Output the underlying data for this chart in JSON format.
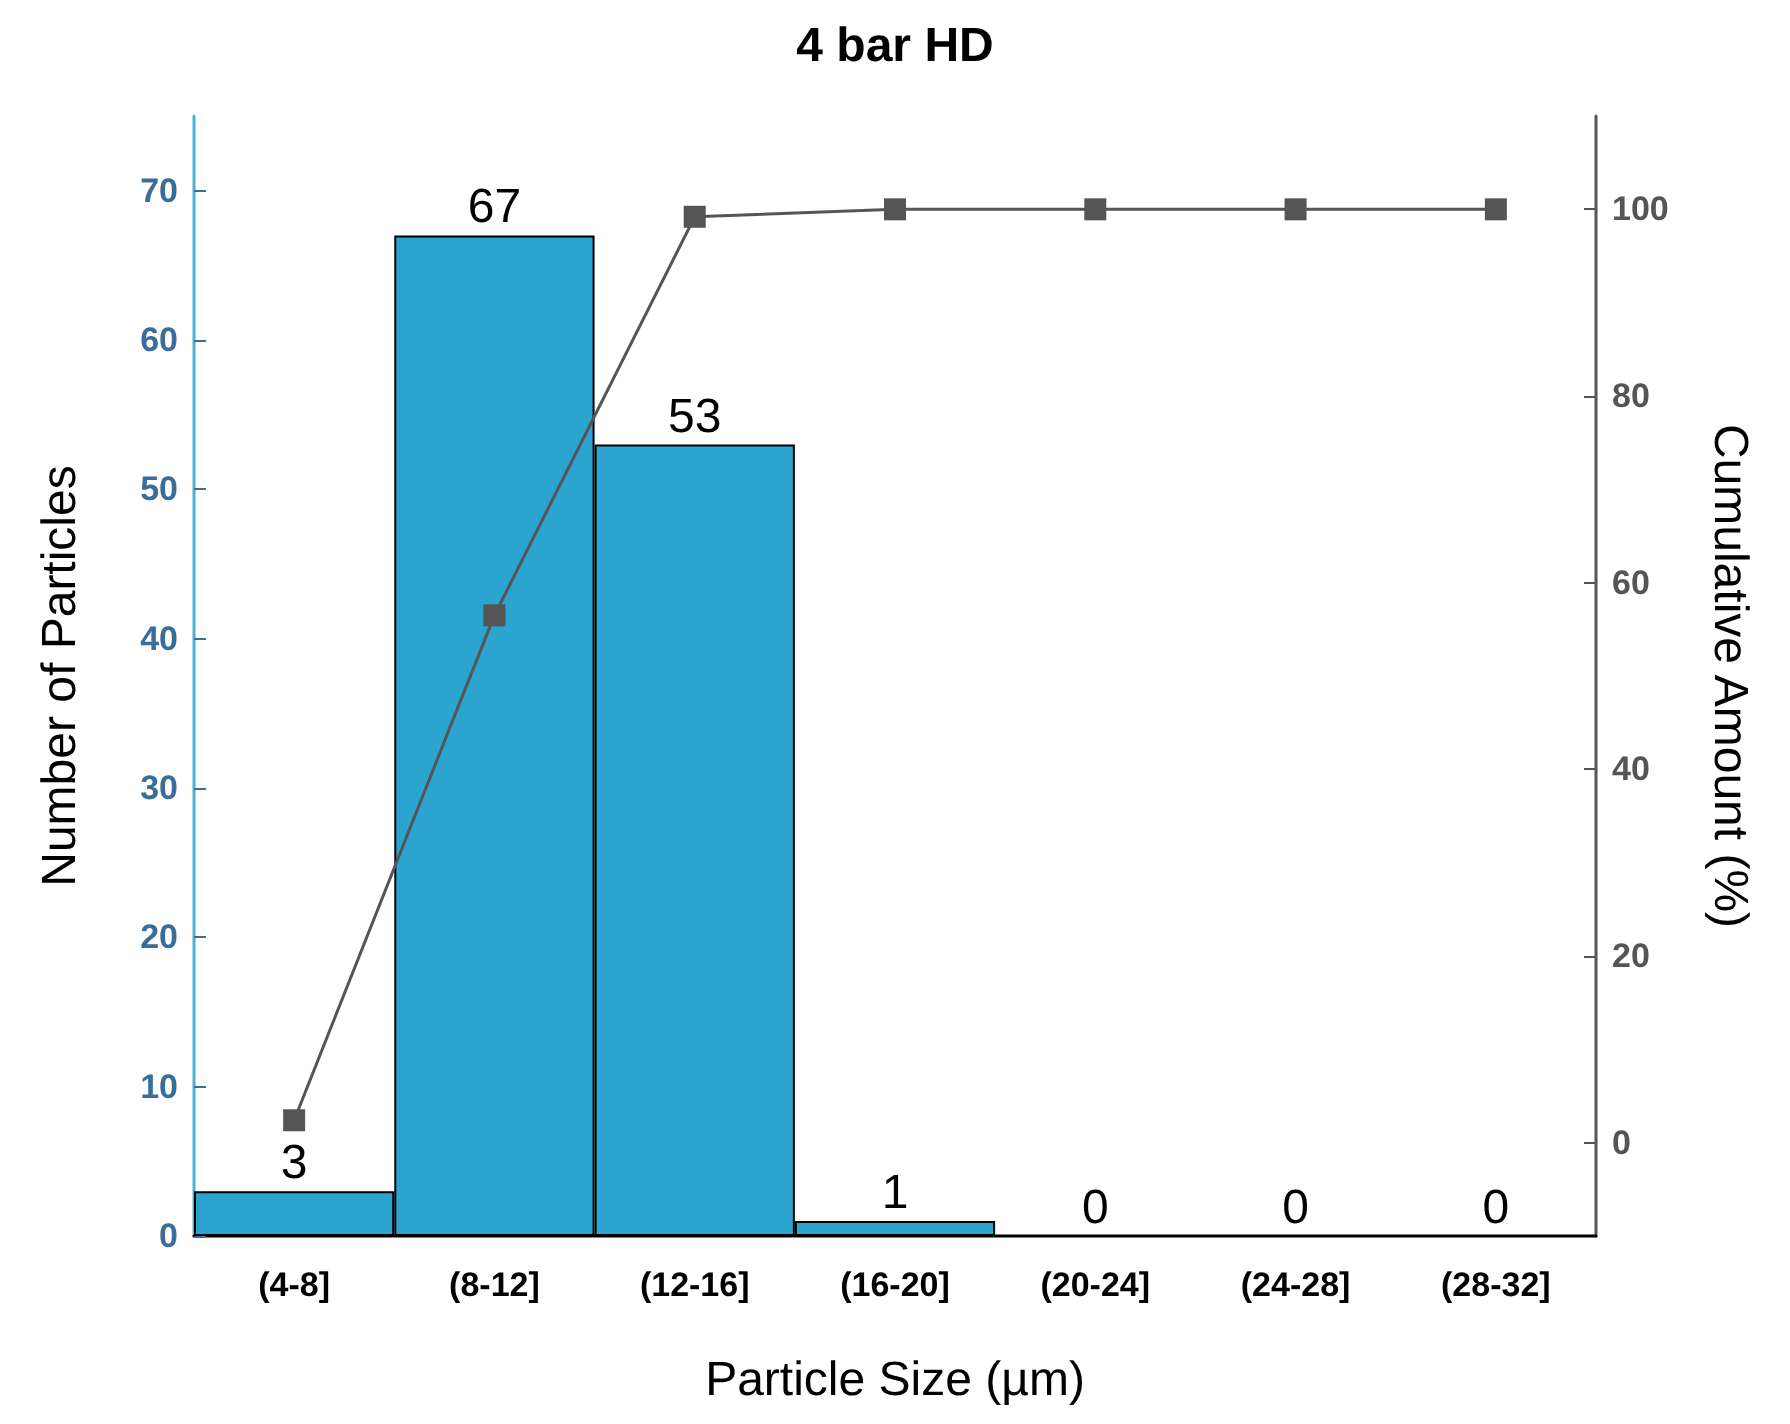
{
  "chart_data": {
    "type": "bar",
    "title": "4 bar HD",
    "xlabel": "Particle Size (µm)",
    "ylabel": "Number of Particles",
    "y2label": "Cumulative Amount (%)",
    "categories": [
      "(4-8]",
      "(8-12]",
      "(12-16]",
      "(16-20]",
      "(20-24]",
      "(24-28]",
      "(28-32]"
    ],
    "series": [
      {
        "color": "#2ba5cf",
        "values": [
          3,
          67,
          53,
          1,
          0,
          0,
          0
        ],
        "value_labels": [
          "3",
          "67",
          "53",
          "1",
          "0",
          "0",
          "0"
        ]
      },
      {
        "type": "line",
        "axis": "y2",
        "color": "#555555",
        "values": [
          2.4,
          56.5,
          99.2,
          100,
          100,
          100,
          100
        ]
      }
    ],
    "ylim": [
      0,
      75
    ],
    "yticks": [
      0,
      10,
      20,
      30,
      40,
      50,
      60,
      70
    ],
    "y2lim": [
      -10,
      110
    ],
    "y2ticks": [
      0,
      20,
      40,
      60,
      80,
      100
    ],
    "marker": "square",
    "line_style": "solid",
    "grid": false
  }
}
